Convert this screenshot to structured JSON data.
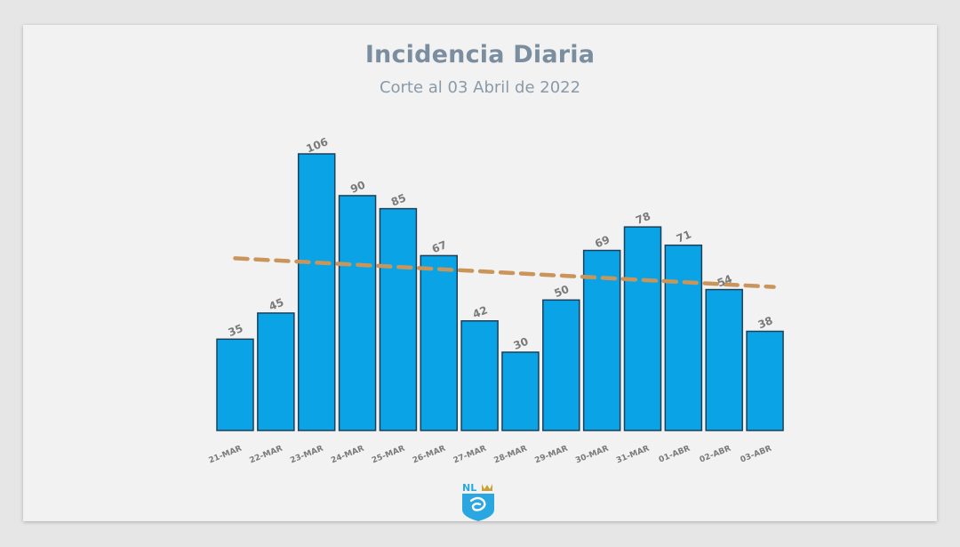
{
  "header": {
    "title": "Incidencia Diaria",
    "subtitle": "Corte al 03 Abril de 2022"
  },
  "logo": {
    "text": "NL",
    "icon": "nuevo-leon-shield-icon"
  },
  "colors": {
    "bar": "#0aa4e6",
    "bar_stroke": "#1d3f5a",
    "trend": "#c9955a",
    "label": "#7a7a7a"
  },
  "chart_data": {
    "type": "bar",
    "title": "Incidencia Diaria",
    "subtitle": "Corte al 03 Abril de 2022",
    "xlabel": "",
    "ylabel": "",
    "categories": [
      "21-MAR",
      "22-MAR",
      "23-MAR",
      "24-MAR",
      "25-MAR",
      "26-MAR",
      "27-MAR",
      "28-MAR",
      "29-MAR",
      "30-MAR",
      "31-MAR",
      "01-ABR",
      "02-ABR",
      "03-ABR"
    ],
    "values": [
      35,
      45,
      106,
      90,
      85,
      67,
      42,
      30,
      50,
      69,
      78,
      71,
      54,
      38
    ],
    "data_labels": [
      "35",
      "45",
      "106",
      "90",
      "85",
      "67",
      "42",
      "30",
      "50",
      "69",
      "78",
      "71",
      "54",
      "38"
    ],
    "trendline": {
      "style": "dashed",
      "start": 66,
      "end": 55
    },
    "ylim": [
      0,
      110
    ],
    "grid": false,
    "legend": "none"
  }
}
